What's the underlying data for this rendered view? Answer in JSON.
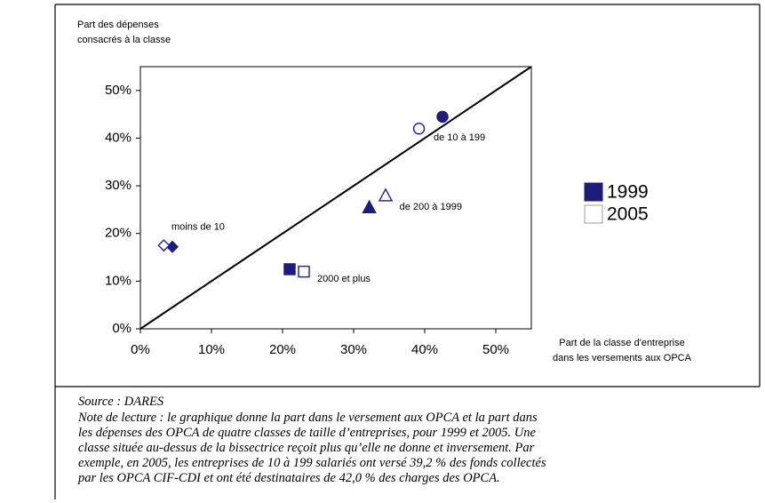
{
  "chart_data": {
    "type": "scatter",
    "y_label_lines": [
      "Part des dépenses",
      "consacrés à la classe"
    ],
    "x_label_lines": [
      "Part de la classe d'entreprise",
      "dans les versements aux OPCA"
    ],
    "categories": [
      "moins de 10",
      "2000 et plus",
      "de 200 à 1999",
      "de 10 à 199"
    ],
    "markers": [
      "diamond",
      "square",
      "triangle",
      "circle"
    ],
    "series": [
      {
        "name": "1999",
        "color": "#1c1c7a",
        "filled": true,
        "x": [
          4.5,
          21,
          32.2,
          42.5
        ],
        "values": [
          17.2,
          12.5,
          25.5,
          44.5
        ]
      },
      {
        "name": "2005",
        "color": "#2a2aa0",
        "filled": false,
        "x": [
          3.3,
          23,
          34.5,
          39.2
        ],
        "values": [
          17.5,
          12,
          28,
          42
        ]
      }
    ],
    "xlim": [
      0,
      55
    ],
    "ylim": [
      0,
      55
    ],
    "xticks": [
      {
        "value": 0,
        "label": "0%"
      },
      {
        "value": 10,
        "label": "10%"
      },
      {
        "value": 20,
        "label": "20%"
      },
      {
        "value": 30,
        "label": "30%"
      },
      {
        "value": 40,
        "label": "40%"
      },
      {
        "value": 50,
        "label": "50%"
      }
    ],
    "yticks": [
      {
        "value": 0,
        "label": "0%"
      },
      {
        "value": 10,
        "label": "10%"
      },
      {
        "value": 20,
        "label": "20%"
      },
      {
        "value": 30,
        "label": "30%"
      },
      {
        "value": 40,
        "label": "40%"
      },
      {
        "value": 50,
        "label": "50%"
      }
    ],
    "diagonal": true,
    "source": "Source : DARES",
    "note_lines": [
      "Note de lecture : le graphique donne la part dans le versement aux OPCA et la part dans",
      "les dépenses des OPCA de quatre classes de taille d’entreprises, pour 1999 et 2005. Une",
      "classe située au-dessus de la bissectrice reçoit plus qu’elle ne donne et inversement. Par",
      "exemple, en 2005, les entreprises de 10 à 199 salariés ont versé 39,2 % des fonds collectés",
      "par les OPCA CIF-CDI et ont été destinataires de 42,0 % des charges des OPCA."
    ]
  }
}
